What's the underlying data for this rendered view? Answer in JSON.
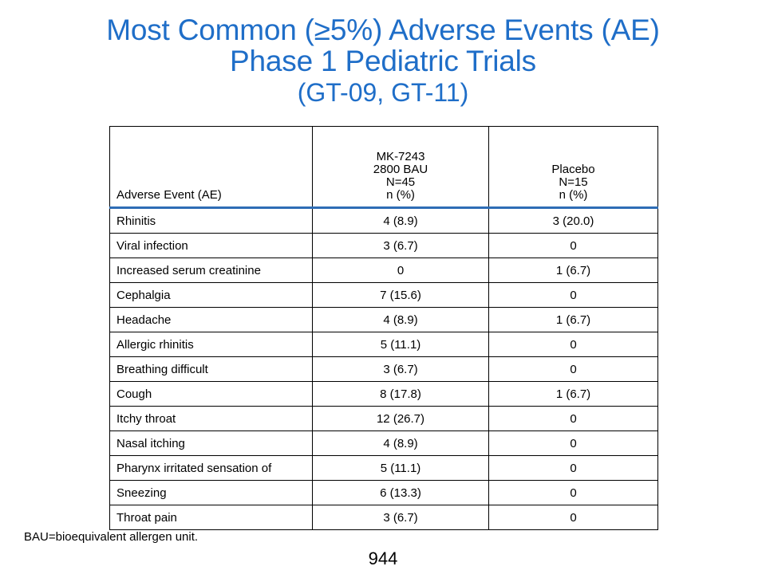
{
  "colors": {
    "title": "#1F6EC8",
    "header_rule": "#2E6DB5",
    "text": "#000000",
    "background": "#FFFFFF"
  },
  "title": {
    "line1": "Most Common (≥5%) Adverse Events (AE)",
    "line2": "Phase 1 Pediatric Trials",
    "line3": "(GT-09, GT-11)"
  },
  "table": {
    "headers": {
      "ae": "Adverse Event (AE)",
      "mk": [
        "MK-7243",
        "2800 BAU",
        "N=45",
        "n (%)"
      ],
      "placebo": [
        "Placebo",
        "N=15",
        "n (%)"
      ]
    },
    "rows": [
      {
        "ae": "Rhinitis",
        "mk": "4 (8.9)",
        "placebo": "3 (20.0)"
      },
      {
        "ae": "Viral infection",
        "mk": "3 (6.7)",
        "placebo": "0"
      },
      {
        "ae": "Increased serum creatinine",
        "mk": "0",
        "placebo": "1 (6.7)"
      },
      {
        "ae": "Cephalgia",
        "mk": "7 (15.6)",
        "placebo": "0"
      },
      {
        "ae": "Headache",
        "mk": "4 (8.9)",
        "placebo": "1 (6.7)"
      },
      {
        "ae": "Allergic rhinitis",
        "mk": "5 (11.1)",
        "placebo": "0"
      },
      {
        "ae": "Breathing difficult",
        "mk": "3 (6.7)",
        "placebo": "0"
      },
      {
        "ae": "Cough",
        "mk": "8 (17.8)",
        "placebo": "1 (6.7)"
      },
      {
        "ae": "Itchy throat",
        "mk": "12 (26.7)",
        "placebo": "0"
      },
      {
        "ae": "Nasal itching",
        "mk": "4 (8.9)",
        "placebo": "0"
      },
      {
        "ae": "Pharynx irritated sensation of",
        "mk": "5 (11.1)",
        "placebo": "0"
      },
      {
        "ae": "Sneezing",
        "mk": "6 (13.3)",
        "placebo": "0"
      },
      {
        "ae": "Throat pain",
        "mk": "3 (6.7)",
        "placebo": "0"
      }
    ]
  },
  "footnote": "BAU=bioequivalent allergen unit.",
  "page_number": "944"
}
